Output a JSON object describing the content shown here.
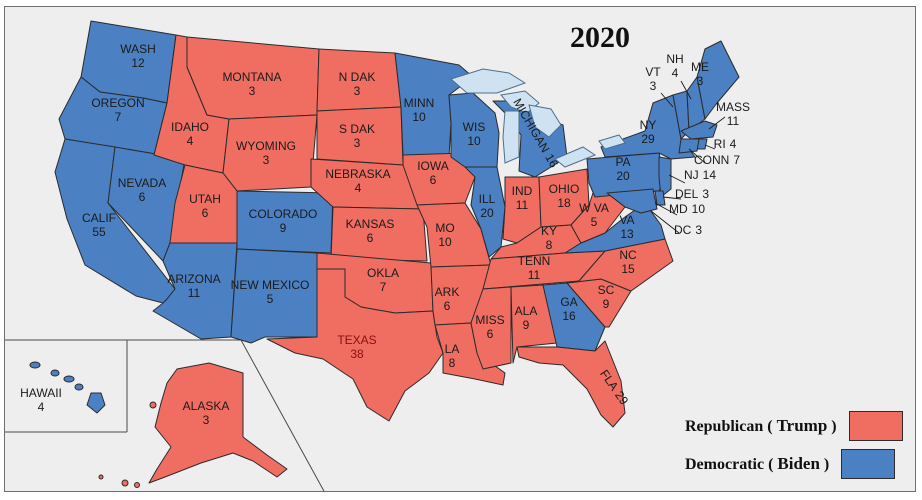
{
  "title": "2020",
  "colors": {
    "republican": "#f06e61",
    "democratic": "#4b80c2",
    "background": "#eeeeee",
    "lakes": "#cfe2f1"
  },
  "legend": [
    {
      "party": "Republican",
      "candidate": "Trump",
      "color": "#f06e61"
    },
    {
      "party": "Democratic",
      "candidate": "Biden",
      "color": "#4b80c2"
    }
  ],
  "states": [
    {
      "name": "WASH",
      "votes": "12",
      "party": "D"
    },
    {
      "name": "OREGON",
      "votes": "7",
      "party": "D"
    },
    {
      "name": "CALIF",
      "votes": "55",
      "party": "D"
    },
    {
      "name": "NEVADA",
      "votes": "6",
      "party": "D"
    },
    {
      "name": "IDAHO",
      "votes": "4",
      "party": "R"
    },
    {
      "name": "MONTANA",
      "votes": "3",
      "party": "R"
    },
    {
      "name": "WYOMING",
      "votes": "3",
      "party": "R"
    },
    {
      "name": "UTAH",
      "votes": "6",
      "party": "R"
    },
    {
      "name": "ARIZONA",
      "votes": "11",
      "party": "D"
    },
    {
      "name": "COLORADO",
      "votes": "9",
      "party": "D"
    },
    {
      "name": "NEW MEXICO",
      "votes": "5",
      "party": "D"
    },
    {
      "name": "N DAK",
      "votes": "3",
      "party": "R"
    },
    {
      "name": "S DAK",
      "votes": "3",
      "party": "R"
    },
    {
      "name": "NEBRASKA",
      "votes": "4",
      "party": "R"
    },
    {
      "name": "KANSAS",
      "votes": "6",
      "party": "R"
    },
    {
      "name": "OKLA",
      "votes": "7",
      "party": "R"
    },
    {
      "name": "TEXAS",
      "votes": "38",
      "party": "R"
    },
    {
      "name": "MINN",
      "votes": "10",
      "party": "D"
    },
    {
      "name": "IOWA",
      "votes": "6",
      "party": "R"
    },
    {
      "name": "MO",
      "votes": "10",
      "party": "R"
    },
    {
      "name": "ARK",
      "votes": "6",
      "party": "R"
    },
    {
      "name": "LA",
      "votes": "8",
      "party": "R"
    },
    {
      "name": "WIS",
      "votes": "10",
      "party": "D"
    },
    {
      "name": "ILL",
      "votes": "20",
      "party": "D"
    },
    {
      "name": "MICHIGAN",
      "votes": "16",
      "party": "D"
    },
    {
      "name": "IND",
      "votes": "11",
      "party": "R"
    },
    {
      "name": "OHIO",
      "votes": "18",
      "party": "R"
    },
    {
      "name": "KY",
      "votes": "8",
      "party": "R"
    },
    {
      "name": "TENN",
      "votes": "11",
      "party": "R"
    },
    {
      "name": "MISS",
      "votes": "6",
      "party": "R"
    },
    {
      "name": "ALA",
      "votes": "9",
      "party": "R"
    },
    {
      "name": "GA",
      "votes": "16",
      "party": "D"
    },
    {
      "name": "FLA",
      "votes": "29",
      "party": "R"
    },
    {
      "name": "SC",
      "votes": "9",
      "party": "R"
    },
    {
      "name": "NC",
      "votes": "15",
      "party": "R"
    },
    {
      "name": "VA",
      "votes": "13",
      "party": "D"
    },
    {
      "name": "W VA",
      "votes": "5",
      "party": "R"
    },
    {
      "name": "PA",
      "votes": "20",
      "party": "D"
    },
    {
      "name": "NY",
      "votes": "29",
      "party": "D"
    },
    {
      "name": "VT",
      "votes": "3",
      "party": "D"
    },
    {
      "name": "NH",
      "votes": "4",
      "party": "D"
    },
    {
      "name": "ME",
      "votes": "3",
      "party": "D"
    },
    {
      "name": "MASS",
      "votes": "11",
      "party": "D"
    },
    {
      "name": "RI",
      "votes": "4",
      "party": "D"
    },
    {
      "name": "CONN",
      "votes": "7",
      "party": "D"
    },
    {
      "name": "NJ",
      "votes": "14",
      "party": "D"
    },
    {
      "name": "DEL",
      "votes": "3",
      "party": "D"
    },
    {
      "name": "MD",
      "votes": "10",
      "party": "D"
    },
    {
      "name": "DC",
      "votes": "3",
      "party": "D"
    },
    {
      "name": "ALASKA",
      "votes": "3",
      "party": "R"
    },
    {
      "name": "HAWAII",
      "votes": "4",
      "party": "D"
    }
  ]
}
